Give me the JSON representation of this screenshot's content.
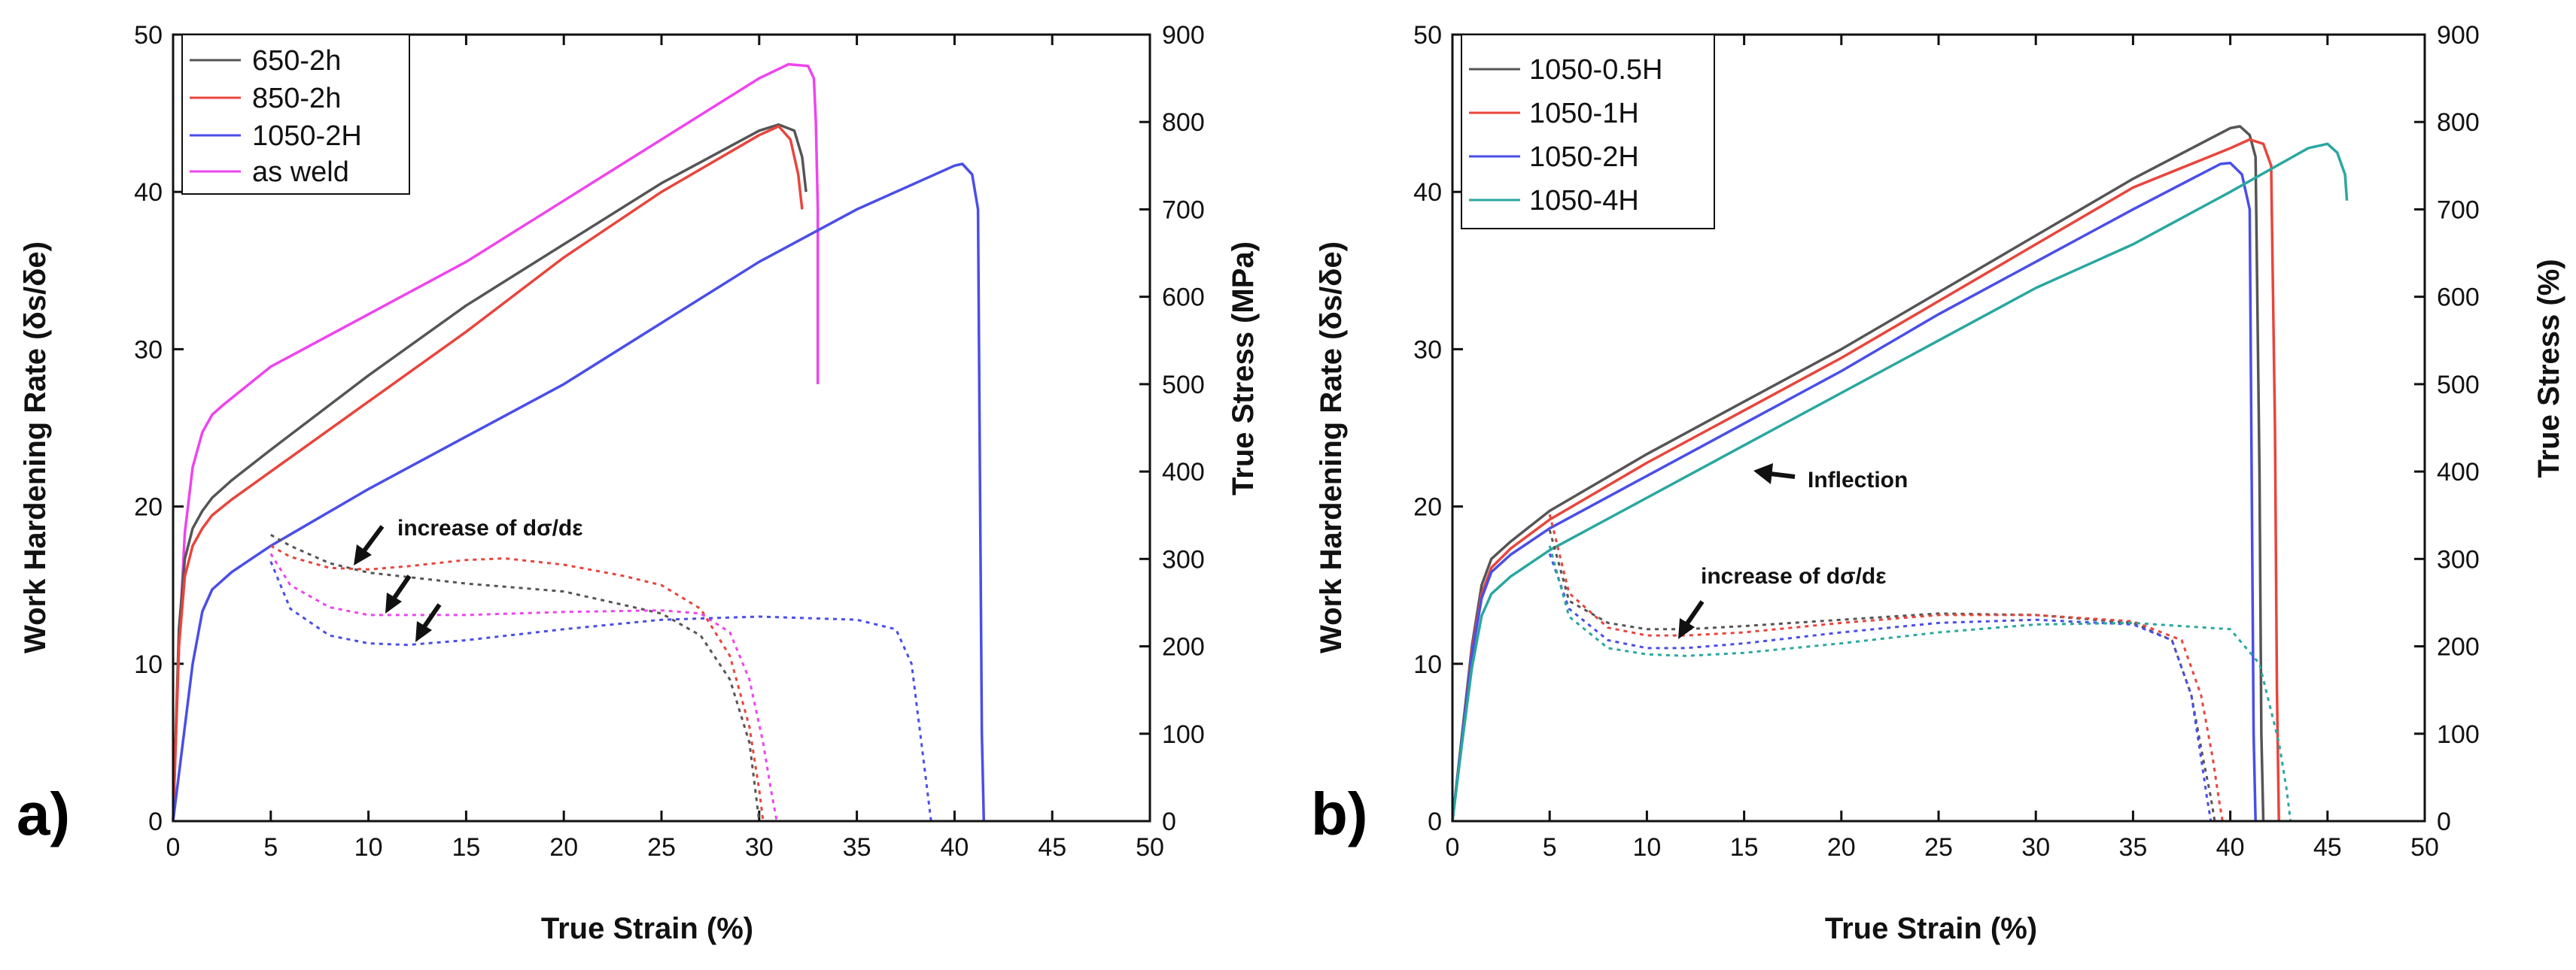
{
  "chart_data": [
    {
      "type": "line",
      "panel_label": "a)",
      "xlabel": "True Strain (%)",
      "ylabel_left": "Work Hardening Rate (δs/δe)",
      "ylabel_right": "True Stress (MPa)",
      "xlim": [
        0,
        50
      ],
      "ylim_left": [
        0,
        50
      ],
      "ylim_right": [
        0,
        900
      ],
      "xticks": [
        0,
        5,
        10,
        15,
        20,
        25,
        30,
        35,
        40,
        45,
        50
      ],
      "yticks_left": [
        0,
        10,
        20,
        30,
        40,
        50
      ],
      "yticks_right": [
        0,
        100,
        200,
        300,
        400,
        500,
        600,
        700,
        800,
        900
      ],
      "legend": [
        "650-2h",
        "850-2h",
        "1050-2H",
        "as weld"
      ],
      "colors": {
        "650-2h": "#555555",
        "850-2h": "#e8453c",
        "1050-2H": "#4a4ee8",
        "as weld": "#ee44ee"
      },
      "stress_series": [
        {
          "name": "as weld",
          "color": "#ee44ee",
          "x": [
            0,
            0.3,
            0.6,
            1.0,
            1.5,
            2.0,
            2.5,
            5,
            10,
            15,
            20,
            25,
            30,
            31.5,
            32.5,
            32.8,
            32.9,
            33.0,
            33.0,
            33.0
          ],
          "y": [
            0,
            200,
            330,
            405,
            445,
            465,
            475,
            520,
            580,
            640,
            710,
            780,
            850,
            866,
            864,
            850,
            800,
            700,
            600,
            500
          ]
        },
        {
          "name": "650-2h",
          "color": "#555555",
          "x": [
            0,
            0.3,
            0.6,
            1.0,
            1.5,
            2.0,
            3,
            5,
            10,
            15,
            20,
            25,
            30,
            31.0,
            31.8,
            32.2,
            32.4
          ],
          "y": [
            0,
            220,
            300,
            335,
            355,
            370,
            390,
            425,
            510,
            590,
            660,
            730,
            790,
            797,
            790,
            760,
            720
          ]
        },
        {
          "name": "850-2h",
          "color": "#e8453c",
          "x": [
            0,
            0.3,
            0.6,
            1.0,
            1.5,
            2.0,
            3,
            5,
            10,
            15,
            20,
            25,
            30,
            31.0,
            31.6,
            32.0,
            32.2
          ],
          "y": [
            0,
            200,
            280,
            315,
            335,
            350,
            368,
            400,
            480,
            560,
            645,
            720,
            785,
            795,
            780,
            740,
            700
          ]
        },
        {
          "name": "1050-2H",
          "color": "#4a4ee8",
          "x": [
            0,
            0.5,
            1.0,
            1.5,
            2.0,
            3.0,
            4,
            5,
            10,
            15,
            20,
            25,
            30,
            35,
            40,
            40.4,
            40.9,
            41.2,
            41.3,
            41.4,
            41.5
          ],
          "y": [
            0,
            90,
            180,
            240,
            265,
            285,
            300,
            315,
            380,
            440,
            500,
            570,
            640,
            700,
            750,
            752,
            740,
            700,
            400,
            100,
            0
          ]
        }
      ],
      "whr_series": [
        {
          "name": "650-2h",
          "color": "#555555",
          "x": [
            5,
            6,
            8,
            10,
            15,
            20,
            25,
            27,
            28.5,
            29.5,
            29.8,
            30.0
          ],
          "y": [
            18.2,
            17.5,
            16.4,
            15.8,
            15.1,
            14.6,
            13.2,
            11.8,
            9.0,
            5.0,
            2.0,
            0
          ]
        },
        {
          "name": "850-2h",
          "color": "#e8453c",
          "x": [
            5,
            6,
            8,
            10,
            12,
            15,
            17,
            20,
            23,
            25,
            27,
            28.5,
            29.5,
            30.0,
            30.2
          ],
          "y": [
            17.5,
            16.8,
            16.1,
            16.0,
            16.2,
            16.6,
            16.7,
            16.3,
            15.6,
            15.0,
            13.5,
            10.5,
            6.0,
            2.0,
            0
          ]
        },
        {
          "name": "as weld",
          "color": "#ee44ee",
          "x": [
            5,
            6,
            8,
            10,
            15,
            20,
            25,
            27,
            28.5,
            29.5,
            30.2,
            30.6,
            30.9
          ],
          "y": [
            17.0,
            15.0,
            13.6,
            13.1,
            13.1,
            13.3,
            13.4,
            13.2,
            12.0,
            9.0,
            5.0,
            2.0,
            0
          ]
        },
        {
          "name": "1050-2H",
          "color": "#4a4ee8",
          "x": [
            5,
            6,
            8,
            10,
            12,
            15,
            20,
            25,
            30,
            35,
            37,
            37.8,
            38.3,
            38.6,
            38.8
          ],
          "y": [
            16.5,
            13.5,
            11.8,
            11.3,
            11.2,
            11.5,
            12.2,
            12.8,
            13.0,
            12.8,
            12.2,
            10.0,
            5.0,
            2.0,
            0
          ]
        }
      ],
      "annotations": [
        {
          "text": "increase of dσ/dε",
          "x": 11.0,
          "y": 19.4
        }
      ]
    },
    {
      "type": "line",
      "panel_label": "b)",
      "xlabel": "True Strain (%)",
      "ylabel_left": "Work Hardening Rate (δs/δe)",
      "ylabel_right": "True Stress (%)",
      "xlim": [
        0,
        50
      ],
      "ylim_left": [
        0,
        50
      ],
      "ylim_right": [
        0,
        900
      ],
      "xticks": [
        0,
        5,
        10,
        15,
        20,
        25,
        30,
        35,
        40,
        45,
        50
      ],
      "yticks_left": [
        0,
        10,
        20,
        30,
        40,
        50
      ],
      "yticks_right": [
        0,
        100,
        200,
        300,
        400,
        500,
        600,
        700,
        800,
        900
      ],
      "legend": [
        "1050-0.5H",
        "1050-1H",
        "1050-2H",
        "1050-4H"
      ],
      "colors": {
        "1050-0.5H": "#555555",
        "1050-1H": "#e8453c",
        "1050-2H": "#4a4ee8",
        "1050-4H": "#2aa7a0"
      },
      "stress_series": [
        {
          "name": "1050-0.5H",
          "color": "#555555",
          "x": [
            0,
            0.5,
            1.0,
            1.5,
            2.0,
            3.0,
            5,
            10,
            15,
            20,
            25,
            30,
            35,
            40,
            40.5,
            41.0,
            41.3,
            41.5,
            41.6,
            41.7
          ],
          "y": [
            0,
            100,
            200,
            270,
            300,
            320,
            355,
            420,
            480,
            540,
            605,
            670,
            735,
            793,
            795,
            785,
            760,
            400,
            100,
            0
          ]
        },
        {
          "name": "1050-1H",
          "color": "#e8453c",
          "x": [
            0,
            0.5,
            1.0,
            1.5,
            2.0,
            3.0,
            5,
            10,
            15,
            20,
            25,
            30,
            35,
            40,
            41.0,
            41.7,
            42.1,
            42.3,
            42.4,
            42.5
          ],
          "y": [
            0,
            95,
            195,
            260,
            290,
            312,
            345,
            410,
            470,
            530,
            595,
            660,
            725,
            770,
            780,
            775,
            750,
            450,
            150,
            0
          ]
        },
        {
          "name": "1050-2H",
          "color": "#4a4ee8",
          "x": [
            0,
            0.5,
            1.0,
            1.5,
            2.0,
            3.0,
            5,
            10,
            15,
            20,
            25,
            30,
            35,
            39.5,
            40.0,
            40.6,
            41.0,
            41.1,
            41.2,
            41.3
          ],
          "y": [
            0,
            95,
            190,
            255,
            285,
            305,
            335,
            395,
            455,
            515,
            580,
            640,
            700,
            752,
            753,
            740,
            700,
            400,
            100,
            0
          ]
        },
        {
          "name": "1050-4H",
          "color": "#2aa7a0",
          "x": [
            0,
            0.5,
            1.0,
            1.5,
            2.0,
            3.0,
            5,
            10,
            15,
            20,
            25,
            30,
            35,
            40,
            44,
            45.0,
            45.5,
            45.9,
            46.0
          ],
          "y": [
            0,
            90,
            175,
            235,
            260,
            280,
            310,
            370,
            430,
            490,
            550,
            610,
            660,
            720,
            770,
            775,
            765,
            740,
            710
          ]
        }
      ],
      "whr_series": [
        {
          "name": "1050-0.5H",
          "color": "#555555",
          "x": [
            5,
            6,
            8,
            10,
            12,
            15,
            20,
            25,
            30,
            35,
            37,
            38,
            38.6,
            39.0,
            39.2
          ],
          "y": [
            18.5,
            14.0,
            12.6,
            12.2,
            12.2,
            12.4,
            12.8,
            13.2,
            13.1,
            12.6,
            11.5,
            8.0,
            4.0,
            1.5,
            0
          ]
        },
        {
          "name": "1050-1H",
          "color": "#e8453c",
          "x": [
            5,
            6,
            8,
            10,
            12,
            15,
            20,
            25,
            30,
            35,
            37.5,
            38.5,
            39.1,
            39.4,
            39.6
          ],
          "y": [
            19.5,
            14.5,
            12.3,
            11.8,
            11.8,
            12.0,
            12.6,
            13.1,
            13.1,
            12.7,
            11.5,
            8.0,
            4.0,
            1.5,
            0
          ]
        },
        {
          "name": "1050-2H",
          "color": "#4a4ee8",
          "x": [
            5,
            6,
            8,
            10,
            12,
            15,
            20,
            25,
            30,
            35,
            37,
            38,
            38.5,
            38.8,
            39.0
          ],
          "y": [
            17.0,
            13.5,
            11.5,
            11.0,
            11.0,
            11.3,
            12.0,
            12.6,
            12.8,
            12.5,
            11.5,
            8.0,
            4.0,
            1.5,
            0
          ]
        },
        {
          "name": "1050-4H",
          "color": "#2aa7a0",
          "x": [
            5,
            6,
            8,
            10,
            12,
            15,
            20,
            25,
            30,
            35,
            40,
            41.5,
            42.5,
            42.9,
            43.1
          ],
          "y": [
            17.5,
            13.0,
            11.0,
            10.6,
            10.5,
            10.7,
            11.3,
            12.0,
            12.5,
            12.6,
            12.2,
            10.0,
            5.0,
            2.0,
            0
          ]
        }
      ],
      "annotations": [
        {
          "text": "Inflection",
          "x": 18.0,
          "y": 22.8
        },
        {
          "text": "increase of dσ/dε",
          "x": 12.5,
          "y": 16.4
        }
      ]
    }
  ]
}
